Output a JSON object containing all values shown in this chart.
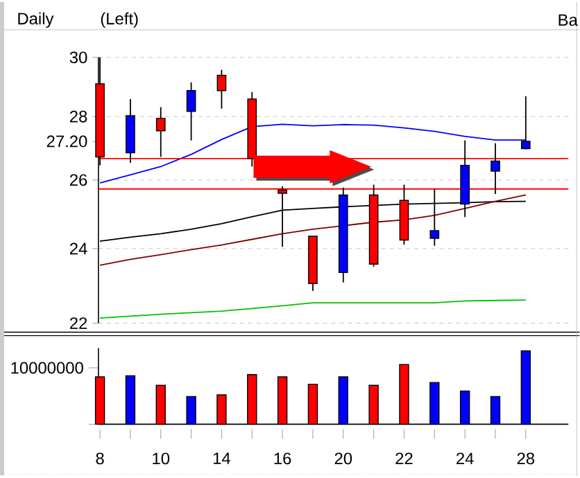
{
  "chart_data": [
    {
      "type": "candlestick",
      "title": "Daily",
      "annotations": [
        "(Left)",
        "Ba"
      ],
      "categories": [
        "8",
        null,
        "10",
        null,
        "14",
        null,
        "16",
        null,
        "20",
        null,
        "22",
        null,
        "24",
        null,
        "28"
      ],
      "ohlc": [
        [
          29.09,
          30,
          26.45,
          26.71
        ],
        [
          26.84,
          28.58,
          26.53,
          28.03
        ],
        [
          27.94,
          28.31,
          26.71,
          27.54
        ],
        [
          28.17,
          29.14,
          27.23,
          28.86
        ],
        [
          29.38,
          29.57,
          28.26,
          28.86
        ],
        [
          28.58,
          28.81,
          26.41,
          26.66
        ],
        [
          25.7,
          25.81,
          24.05,
          25.6
        ],
        [
          24.35,
          24.35,
          22.84,
          23.04
        ],
        [
          23.34,
          25.77,
          23.07,
          25.55
        ],
        [
          25.55,
          25.86,
          23.5,
          23.57
        ],
        [
          25.39,
          25.86,
          24.11,
          24.24
        ],
        [
          24.29,
          25.72,
          24.08,
          24.51
        ],
        [
          25.28,
          27.23,
          24.9,
          26.45
        ],
        [
          26.27,
          27.14,
          25.58,
          26.58
        ],
        [
          26.97,
          28.67,
          26.95,
          27.2
        ]
      ],
      "colors": [
        "#ff0000",
        "#0000ff",
        "#ff0000",
        "#0000ff",
        "#ff0000",
        "#ff0000",
        "#ff0000",
        "#ff0000",
        "#0000ff",
        "#ff0000",
        "#ff0000",
        "#0000ff",
        "#0000ff",
        "#0000ff",
        "#0000ff"
      ],
      "series": [
        {
          "type": "line",
          "color": "#0000ff",
          "values": [
            25.91,
            26.16,
            26.41,
            26.79,
            27.26,
            27.67,
            27.75,
            27.7,
            27.74,
            27.72,
            27.63,
            27.52,
            27.36,
            27.24,
            27.24
          ]
        },
        {
          "type": "line",
          "color": "#000000",
          "values": [
            24.21,
            24.32,
            24.42,
            24.55,
            24.71,
            24.91,
            25.1,
            25.15,
            25.2,
            25.24,
            25.28,
            25.3,
            25.32,
            25.35,
            25.36
          ]
        },
        {
          "type": "line",
          "color": "#800000",
          "values": [
            23.54,
            23.7,
            23.83,
            23.97,
            24.1,
            24.26,
            24.42,
            24.55,
            24.65,
            24.75,
            24.82,
            24.95,
            25.15,
            25.36,
            25.55
          ]
        },
        {
          "type": "line",
          "color": "#00c000",
          "values": [
            22.13,
            22.18,
            22.23,
            22.27,
            22.31,
            22.38,
            22.45,
            22.53,
            22.53,
            22.53,
            22.53,
            22.53,
            22.58,
            22.59,
            22.6
          ]
        }
      ],
      "ref_lines": [
        {
          "axis": "y",
          "value": 26.66,
          "color": "#ff0000"
        },
        {
          "axis": "y",
          "value": 25.73,
          "color": "#ff0000"
        }
      ],
      "log": "y",
      "ylim": [
        22,
        30
      ],
      "yticks": [
        22,
        24,
        26,
        28,
        30,
        {
          "value": 27.2,
          "label": "27.20"
        }
      ],
      "grid": "y",
      "tick_labels": "y"
    },
    {
      "type": "bar",
      "categories": [
        "8",
        null,
        "10",
        null,
        "14",
        null,
        "16",
        null,
        "20",
        null,
        "22",
        null,
        "24",
        null,
        "28"
      ],
      "values": [
        8400000,
        8600000,
        6900000,
        4900000,
        5200000,
        8800000,
        8400000,
        7100000,
        8400000,
        6900000,
        10600000,
        7400000,
        5900000,
        4900000,
        13000000
      ],
      "colors": [
        "#ff0000",
        "#0000ff",
        "#ff0000",
        "#0000ff",
        "#ff0000",
        "#ff0000",
        "#ff0000",
        "#ff0000",
        "#0000ff",
        "#ff0000",
        "#ff0000",
        "#0000ff",
        "#0000ff",
        "#0000ff",
        "#0000ff"
      ],
      "ylim": [
        0,
        13500000
      ],
      "yticks": [
        {
          "value": 0,
          "label": null
        },
        10000000
      ]
    }
  ]
}
